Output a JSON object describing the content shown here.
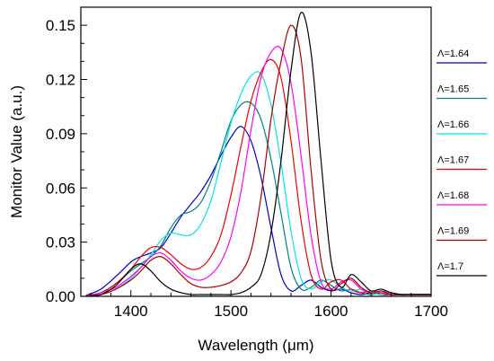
{
  "chart_data": {
    "type": "line",
    "xlabel": "Wavelength (μm)",
    "ylabel": "Monitor Value (a.u.)",
    "xlim": [
      1350,
      1700
    ],
    "ylim": [
      0,
      0.16
    ],
    "x_ticks": [
      1400,
      1500,
      1600,
      1700
    ],
    "x_tick_labels": [
      "1400",
      "1500",
      "1600",
      "1700"
    ],
    "y_ticks": [
      0,
      0.03,
      0.06,
      0.09,
      0.12,
      0.15
    ],
    "y_tick_labels": [
      "0.00",
      "0.03",
      "0.06",
      "0.09",
      "0.12",
      "0.15"
    ],
    "grid": false,
    "legend_position": "right",
    "series": [
      {
        "name": "Λ=1.64",
        "color": "#0000cc",
        "x": [
          1355,
          1370,
          1385,
          1400,
          1410,
          1420,
          1430,
          1440,
          1450,
          1460,
          1470,
          1480,
          1490,
          1500,
          1510,
          1520,
          1530,
          1540,
          1550,
          1560,
          1570,
          1580,
          1590,
          1600,
          1610,
          1620,
          1630,
          1640,
          1650,
          1660,
          1670,
          1680,
          1690,
          1700
        ],
        "y": [
          0.0005,
          0.004,
          0.011,
          0.019,
          0.022,
          0.024,
          0.027,
          0.035,
          0.044,
          0.051,
          0.058,
          0.067,
          0.078,
          0.088,
          0.094,
          0.086,
          0.066,
          0.038,
          0.012,
          0.003,
          0.006,
          0.009,
          0.005,
          0.003,
          0.004,
          0.002,
          0.001,
          0.002,
          0.001,
          0.001,
          0.001,
          0.001,
          0.001,
          0.001
        ]
      },
      {
        "name": "Λ=1.65",
        "color": "#008080",
        "x": [
          1355,
          1370,
          1385,
          1400,
          1410,
          1420,
          1430,
          1440,
          1450,
          1460,
          1470,
          1480,
          1490,
          1500,
          1510,
          1520,
          1530,
          1540,
          1550,
          1560,
          1570,
          1580,
          1590,
          1600,
          1610,
          1620,
          1630,
          1640,
          1650,
          1660,
          1670,
          1680,
          1690,
          1700
        ],
        "y": [
          0.0003,
          0.002,
          0.007,
          0.014,
          0.018,
          0.022,
          0.028,
          0.038,
          0.045,
          0.047,
          0.052,
          0.064,
          0.08,
          0.097,
          0.106,
          0.107,
          0.098,
          0.076,
          0.046,
          0.016,
          0.004,
          0.005,
          0.009,
          0.006,
          0.003,
          0.004,
          0.002,
          0.001,
          0.002,
          0.001,
          0.001,
          0.001,
          0.001,
          0.001
        ]
      },
      {
        "name": "Λ=1.66",
        "color": "#00e5e5",
        "x": [
          1355,
          1370,
          1385,
          1400,
          1410,
          1420,
          1430,
          1440,
          1450,
          1460,
          1470,
          1480,
          1490,
          1500,
          1510,
          1520,
          1530,
          1540,
          1550,
          1560,
          1570,
          1580,
          1590,
          1600,
          1610,
          1620,
          1630,
          1640,
          1650,
          1660,
          1670,
          1680,
          1690,
          1700
        ],
        "y": [
          0.0002,
          0.001,
          0.004,
          0.01,
          0.016,
          0.023,
          0.031,
          0.035,
          0.034,
          0.034,
          0.04,
          0.053,
          0.074,
          0.096,
          0.112,
          0.122,
          0.123,
          0.106,
          0.074,
          0.036,
          0.01,
          0.004,
          0.008,
          0.009,
          0.005,
          0.003,
          0.004,
          0.002,
          0.001,
          0.002,
          0.001,
          0.001,
          0.001,
          0.001
        ]
      },
      {
        "name": "Λ=1.67",
        "color": "#ee0000",
        "x": [
          1355,
          1370,
          1385,
          1400,
          1410,
          1420,
          1430,
          1440,
          1450,
          1460,
          1470,
          1480,
          1490,
          1500,
          1510,
          1520,
          1530,
          1540,
          1550,
          1560,
          1570,
          1580,
          1590,
          1600,
          1610,
          1620,
          1630,
          1640,
          1650,
          1660,
          1670,
          1680,
          1690,
          1700
        ],
        "y": [
          0.0005,
          0.002,
          0.007,
          0.015,
          0.022,
          0.027,
          0.027,
          0.023,
          0.018,
          0.015,
          0.016,
          0.022,
          0.034,
          0.056,
          0.083,
          0.108,
          0.124,
          0.131,
          0.121,
          0.086,
          0.042,
          0.012,
          0.004,
          0.008,
          0.009,
          0.004,
          0.002,
          0.003,
          0.002,
          0.001,
          0.001,
          0.001,
          0.001,
          0.001
        ]
      },
      {
        "name": "Λ=1.68",
        "color": "#ff00ff",
        "x": [
          1355,
          1370,
          1385,
          1400,
          1410,
          1420,
          1430,
          1440,
          1450,
          1460,
          1470,
          1480,
          1490,
          1500,
          1510,
          1520,
          1530,
          1540,
          1550,
          1560,
          1570,
          1580,
          1590,
          1600,
          1610,
          1620,
          1630,
          1640,
          1650,
          1660,
          1670,
          1680,
          1690,
          1700
        ],
        "y": [
          0.0003,
          0.002,
          0.005,
          0.011,
          0.016,
          0.022,
          0.024,
          0.02,
          0.014,
          0.01,
          0.009,
          0.012,
          0.019,
          0.033,
          0.058,
          0.092,
          0.121,
          0.135,
          0.137,
          0.118,
          0.078,
          0.034,
          0.008,
          0.004,
          0.008,
          0.009,
          0.004,
          0.002,
          0.003,
          0.002,
          0.001,
          0.001,
          0.001,
          0.001
        ]
      },
      {
        "name": "Λ=1.69",
        "color": "#aa0000",
        "x": [
          1355,
          1370,
          1385,
          1400,
          1410,
          1420,
          1430,
          1440,
          1450,
          1460,
          1470,
          1480,
          1490,
          1500,
          1510,
          1520,
          1530,
          1540,
          1550,
          1560,
          1570,
          1580,
          1590,
          1600,
          1610,
          1620,
          1630,
          1640,
          1650,
          1660,
          1670,
          1680,
          1690,
          1700
        ],
        "y": [
          0.0002,
          0.001,
          0.004,
          0.009,
          0.014,
          0.02,
          0.022,
          0.018,
          0.012,
          0.007,
          0.005,
          0.005,
          0.006,
          0.008,
          0.013,
          0.025,
          0.055,
          0.098,
          0.13,
          0.15,
          0.132,
          0.07,
          0.02,
          0.004,
          0.007,
          0.01,
          0.005,
          0.002,
          0.003,
          0.001,
          0.001,
          0.001,
          0.001,
          0.001
        ]
      },
      {
        "name": "Λ=1.7",
        "color": "#000000",
        "x": [
          1355,
          1370,
          1385,
          1400,
          1410,
          1420,
          1430,
          1440,
          1450,
          1460,
          1470,
          1480,
          1490,
          1500,
          1510,
          1520,
          1530,
          1540,
          1550,
          1560,
          1570,
          1580,
          1590,
          1600,
          1610,
          1620,
          1630,
          1640,
          1650,
          1660,
          1670,
          1680,
          1690,
          1700
        ],
        "y": [
          0.0001,
          0.001,
          0.006,
          0.015,
          0.018,
          0.014,
          0.008,
          0.004,
          0.002,
          0.001,
          0.001,
          0.001,
          0.001,
          0.001,
          0.002,
          0.005,
          0.012,
          0.035,
          0.075,
          0.125,
          0.157,
          0.135,
          0.075,
          0.02,
          0.005,
          0.012,
          0.008,
          0.003,
          0.004,
          0.002,
          0.001,
          0.001,
          0.001,
          0.001
        ]
      }
    ]
  }
}
